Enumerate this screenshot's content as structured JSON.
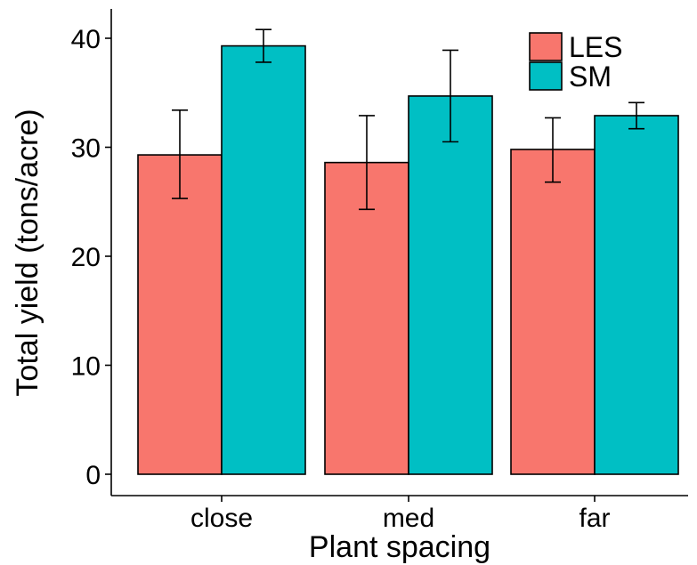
{
  "chart_data": {
    "type": "bar",
    "xlabel": "Plant spacing",
    "ylabel": "Total yield (tons/acre)",
    "categories": [
      "close",
      "med",
      "far"
    ],
    "yticks": [
      0,
      10,
      20,
      30,
      40
    ],
    "ylim": [
      0,
      43.5
    ],
    "grid": false,
    "legend_position": "top-right",
    "series": [
      {
        "name": "LES",
        "color": "#F8766D",
        "values": [
          29.3,
          28.6,
          29.8
        ],
        "error_low": [
          25.3,
          24.3,
          26.8
        ],
        "error_high": [
          33.4,
          32.9,
          32.7
        ]
      },
      {
        "name": "SM",
        "color": "#00BFC4",
        "values": [
          39.3,
          34.7,
          32.9
        ],
        "error_low": [
          37.8,
          30.5,
          31.7
        ],
        "error_high": [
          40.8,
          38.9,
          34.1
        ]
      }
    ]
  }
}
